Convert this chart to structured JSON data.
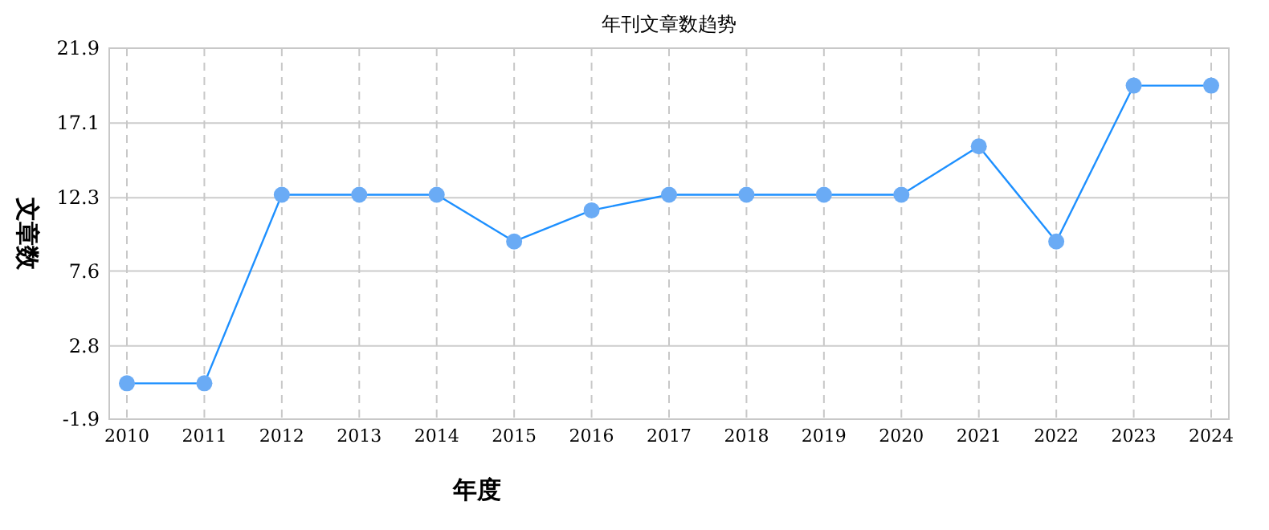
{
  "chart_data": {
    "type": "line",
    "title": "年刊文章数趋势",
    "xlabel": "年度",
    "ylabel": "文章数",
    "categories": [
      "2010",
      "2011",
      "2012",
      "2013",
      "2014",
      "2015",
      "2016",
      "2017",
      "2018",
      "2019",
      "2020",
      "2021",
      "2022",
      "2023",
      "2024"
    ],
    "series": [
      {
        "color": "#1e90ff",
        "values": [
          0.4,
          0.4,
          12.5,
          12.5,
          12.5,
          9.5,
          11.5,
          12.5,
          12.5,
          12.5,
          12.5,
          15.6,
          9.5,
          19.5,
          19.5
        ]
      }
    ],
    "ylim": [
      -1.9,
      21.9
    ],
    "yticks": [
      -1.9,
      2.8,
      7.6,
      12.3,
      17.1,
      21.9
    ],
    "grid": true,
    "marker": "circle",
    "line_style": "solid"
  }
}
